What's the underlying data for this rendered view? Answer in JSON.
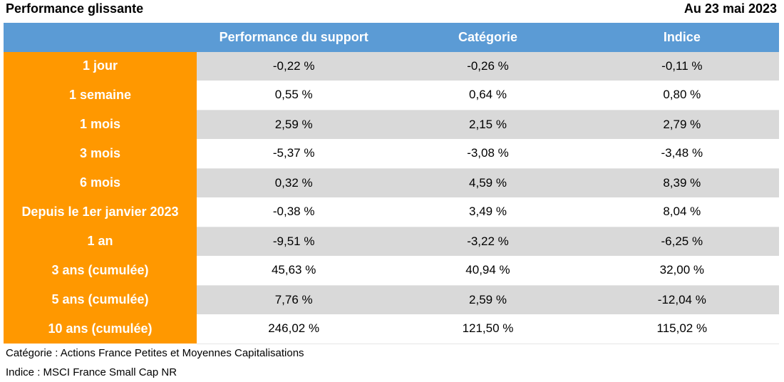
{
  "header": {
    "title": "Performance glissante",
    "date": "Au 23 mai 2023"
  },
  "table": {
    "columns": [
      "Performance du support",
      "Catégorie",
      "Indice"
    ],
    "rows": [
      {
        "label": "1 jour",
        "support": "-0,22 %",
        "categorie": "-0,26 %",
        "indice": "-0,11 %"
      },
      {
        "label": "1 semaine",
        "support": "0,55 %",
        "categorie": "0,64 %",
        "indice": "0,80 %"
      },
      {
        "label": "1 mois",
        "support": "2,59 %",
        "categorie": "2,15 %",
        "indice": "2,79 %"
      },
      {
        "label": "3 mois",
        "support": "-5,37 %",
        "categorie": "-3,08 %",
        "indice": "-3,48 %"
      },
      {
        "label": "6 mois",
        "support": "0,32 %",
        "categorie": "4,59 %",
        "indice": "8,39 %"
      },
      {
        "label": "Depuis le 1er janvier 2023",
        "support": "-0,38 %",
        "categorie": "3,49 %",
        "indice": "8,04 %"
      },
      {
        "label": "1 an",
        "support": "-9,51 %",
        "categorie": "-3,22 %",
        "indice": "-6,25 %"
      },
      {
        "label": "3 ans (cumulée)",
        "support": "45,63 %",
        "categorie": "40,94 %",
        "indice": "32,00 %"
      },
      {
        "label": "5 ans (cumulée)",
        "support": "7,76 %",
        "categorie": "2,59 %",
        "indice": "-12,04 %"
      },
      {
        "label": "10 ans (cumulée)",
        "support": "246,02 %",
        "categorie": "121,50 %",
        "indice": "115,02 %"
      }
    ]
  },
  "notes": {
    "categorie": "Catégorie : Actions France Petites et Moyennes Capitalisations",
    "indice": "Indice : MSCI France Small Cap NR"
  },
  "colors": {
    "header_blue": "#5b9bd5",
    "label_orange": "#ff9800",
    "row_shade": "#d9d9d9"
  }
}
